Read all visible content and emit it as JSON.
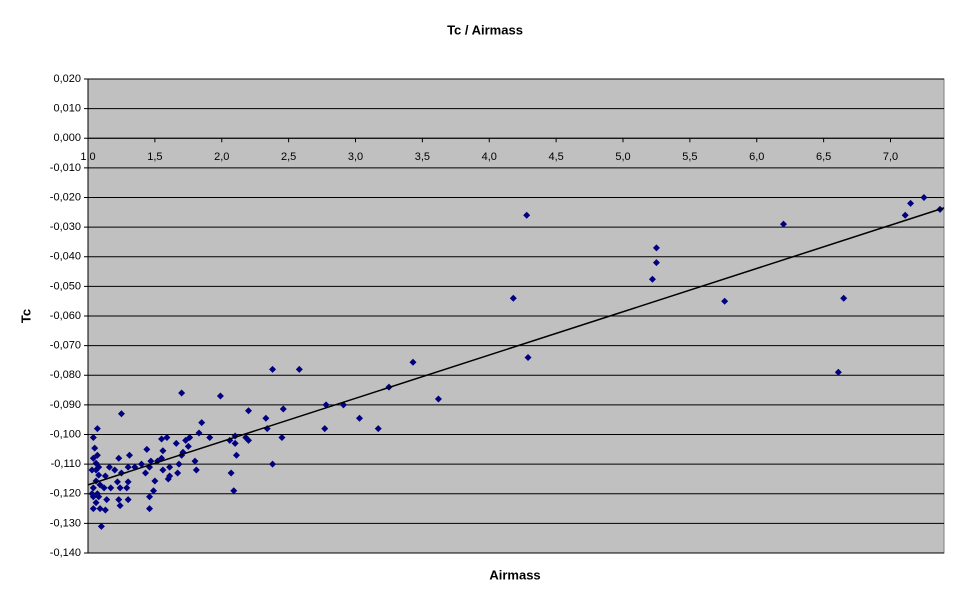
{
  "chart_data": {
    "type": "scatter",
    "title": "Tc / Airmass",
    "xlabel": "Airmass",
    "ylabel": "Tc",
    "color": "#000080",
    "grid": true,
    "xlim": [
      1.0,
      7.4
    ],
    "ylim": [
      -0.14,
      0.02
    ],
    "xticks": [
      {
        "value": 1.0,
        "label": "1,0"
      },
      {
        "value": 1.5,
        "label": "1,5"
      },
      {
        "value": 2.0,
        "label": "2,0"
      },
      {
        "value": 2.5,
        "label": "2,5"
      },
      {
        "value": 3.0,
        "label": "3,0"
      },
      {
        "value": 3.5,
        "label": "3,5"
      },
      {
        "value": 4.0,
        "label": "4,0"
      },
      {
        "value": 4.5,
        "label": "4,5"
      },
      {
        "value": 5.0,
        "label": "5,0"
      },
      {
        "value": 5.5,
        "label": "5,5"
      },
      {
        "value": 6.0,
        "label": "6,0"
      },
      {
        "value": 6.5,
        "label": "6,5"
      },
      {
        "value": 7.0,
        "label": "7,0"
      }
    ],
    "yticks": [
      {
        "value": 0.02,
        "label": "0,020"
      },
      {
        "value": 0.01,
        "label": "0,010"
      },
      {
        "value": 0,
        "label": "0,000"
      },
      {
        "value": -0.01,
        "label": "-0,010"
      },
      {
        "value": -0.02,
        "label": "-0,020"
      },
      {
        "value": -0.03,
        "label": "-0,030"
      },
      {
        "value": -0.04,
        "label": "-0,040"
      },
      {
        "value": -0.05,
        "label": "-0,050"
      },
      {
        "value": -0.06,
        "label": "-0,060"
      },
      {
        "value": -0.07,
        "label": "-0,070"
      },
      {
        "value": -0.08,
        "label": "-0,080"
      },
      {
        "value": -0.09,
        "label": "-0,090"
      },
      {
        "value": -0.1,
        "label": "-0,100"
      },
      {
        "value": -0.11,
        "label": "-0,110"
      },
      {
        "value": -0.12,
        "label": "-0,120"
      },
      {
        "value": -0.13,
        "label": "-0,130"
      },
      {
        "value": -0.14,
        "label": "-0,140"
      }
    ],
    "x": [
      7.15,
      7.25,
      7.11,
      7.37,
      6.2,
      6.65,
      6.61,
      5.76,
      5.25,
      5.25,
      5.22,
      4.28,
      4.18,
      4.29,
      3.62,
      3.43,
      3.25,
      3.17,
      3.03,
      2.91,
      2.78,
      2.77,
      2.58,
      2.38,
      2.38,
      2.46,
      2.45,
      2.33,
      2.34,
      2.2,
      2.18,
      2.2,
      2.1,
      2.1,
      2.06,
      2.11,
      2.07,
      2.09,
      1.99,
      1.91,
      1.85,
      1.83,
      1.8,
      1.81,
      1.7,
      1.76,
      1.73,
      1.75,
      1.71,
      1.7,
      1.68,
      1.66,
      1.67,
      1.61,
      1.59,
      1.55,
      1.56,
      1.55,
      1.52,
      1.56,
      1.6,
      1.61,
      1.44,
      1.47,
      1.46,
      1.43,
      1.4,
      1.5,
      1.49,
      1.46,
      1.46,
      1.35,
      1.31,
      1.3,
      1.3,
      1.29,
      1.3,
      1.25,
      1.23,
      1.25,
      1.2,
      1.22,
      1.24,
      1.23,
      1.24,
      1.16,
      1.17,
      1.13,
      1.12,
      1.14,
      1.13,
      1.1,
      1.07,
      1.04,
      1.05,
      1.04,
      1.06,
      1.08,
      1.08,
      1.06,
      1.09,
      1.04,
      1.07,
      1.04,
      1.08,
      1.06,
      1.09,
      1.04,
      1.03,
      1.03,
      1.06,
      1.07
    ],
    "values": [
      -0.022,
      -0.02,
      -0.026,
      -0.024,
      -0.029,
      -0.054,
      -0.079,
      -0.055,
      -0.037,
      -0.042,
      -0.0476,
      -0.026,
      -0.054,
      -0.074,
      -0.088,
      -0.0756,
      -0.084,
      -0.098,
      -0.0945,
      -0.09,
      -0.09,
      -0.098,
      -0.078,
      -0.078,
      -0.11,
      -0.0914,
      -0.101,
      -0.0945,
      -0.098,
      -0.092,
      -0.101,
      -0.102,
      -0.1005,
      -0.103,
      -0.102,
      -0.107,
      -0.113,
      -0.119,
      -0.087,
      -0.101,
      -0.096,
      -0.0995,
      -0.109,
      -0.112,
      -0.086,
      -0.101,
      -0.102,
      -0.104,
      -0.106,
      -0.107,
      -0.11,
      -0.103,
      -0.113,
      -0.111,
      -0.101,
      -0.1015,
      -0.1055,
      -0.108,
      -0.109,
      -0.112,
      -0.115,
      -0.114,
      -0.105,
      -0.109,
      -0.111,
      -0.113,
      -0.11,
      -0.1157,
      -0.119,
      -0.121,
      -0.125,
      -0.111,
      -0.107,
      -0.111,
      -0.116,
      -0.118,
      -0.122,
      -0.093,
      -0.108,
      -0.113,
      -0.112,
      -0.116,
      -0.118,
      -0.122,
      -0.124,
      -0.111,
      -0.118,
      -0.114,
      -0.118,
      -0.122,
      -0.1255,
      -0.131,
      -0.098,
      -0.101,
      -0.1046,
      -0.108,
      -0.1097,
      -0.111,
      -0.1137,
      -0.1157,
      -0.117,
      -0.118,
      -0.12,
      -0.121,
      -0.121,
      -0.123,
      -0.125,
      -0.125,
      -0.112,
      -0.12,
      -0.112,
      -0.107
    ],
    "trendline": {
      "x": [
        1.0,
        7.4
      ],
      "values": [
        -0.117,
        -0.0235
      ],
      "color": "#000000"
    }
  }
}
